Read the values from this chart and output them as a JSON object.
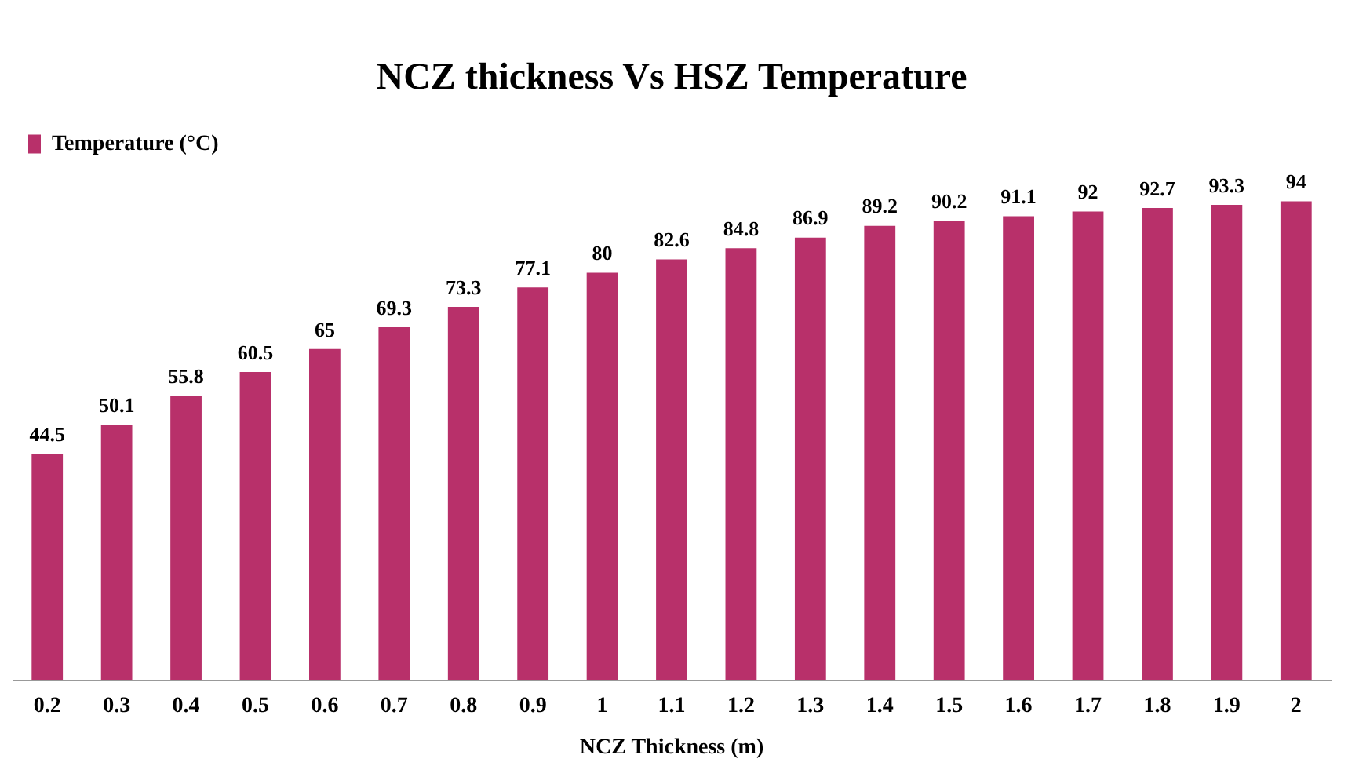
{
  "chart_data": {
    "type": "bar",
    "title": "NCZ thickness Vs HSZ Temperature",
    "xlabel": "NCZ Thickness (m)",
    "categories": [
      "0.2",
      "0.3",
      "0.4",
      "0.5",
      "0.6",
      "0.7",
      "0.8",
      "0.9",
      "1",
      "1.1",
      "1.2",
      "1.3",
      "1.4",
      "1.5",
      "1.6",
      "1.7",
      "1.8",
      "1.9",
      "2"
    ],
    "series": [
      {
        "name": "Temperature (°C)",
        "color": "#b8306a",
        "values": [
          44.5,
          50.1,
          55.8,
          60.5,
          65,
          69.3,
          73.3,
          77.1,
          80,
          82.6,
          84.8,
          86.9,
          89.2,
          90.2,
          91.1,
          92,
          92.7,
          93.3,
          94
        ]
      }
    ],
    "tick_labels": "x",
    "data_labels": true,
    "grid": false,
    "legend": "top left"
  }
}
